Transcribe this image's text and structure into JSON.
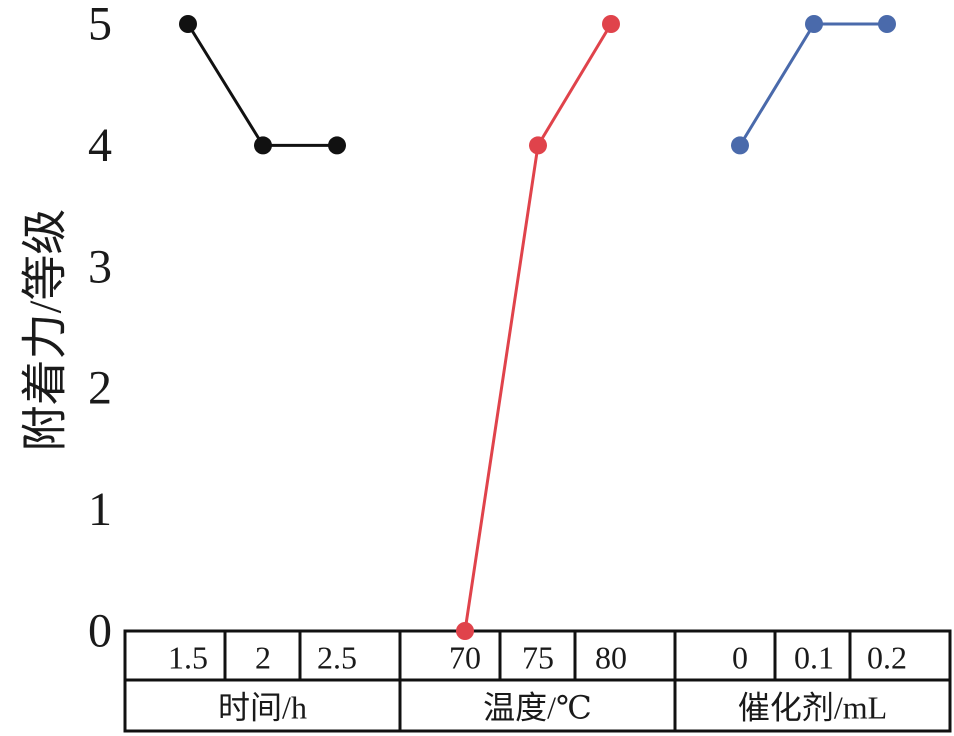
{
  "chart_data": {
    "type": "line",
    "ylabel": "附着力/等级",
    "ylim": [
      0,
      5
    ],
    "yticks": [
      "0",
      "1",
      "2",
      "3",
      "4",
      "5"
    ],
    "series": [
      {
        "group_label": "时间/h",
        "categories": [
          "1.5",
          "2",
          "2.5"
        ],
        "values": [
          5,
          4,
          4
        ],
        "color": "#111111"
      },
      {
        "group_label": "温度/℃",
        "categories": [
          "70",
          "75",
          "80"
        ],
        "values": [
          0,
          4,
          5
        ],
        "color": "#e0434b"
      },
      {
        "group_label": "催化剂/mL",
        "categories": [
          "0",
          "0.1",
          "0.2"
        ],
        "values": [
          4,
          5,
          5
        ],
        "color": "#4a6aab"
      }
    ]
  }
}
